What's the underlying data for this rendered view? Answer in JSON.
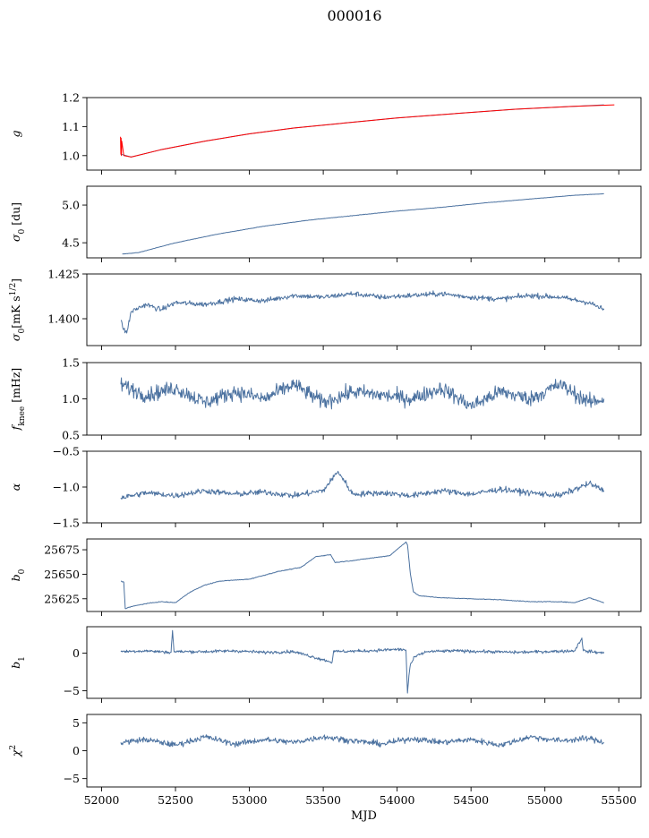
{
  "figure_title": "000016",
  "colors": {
    "series": "#4c72a0",
    "fit": "#ff0000"
  },
  "chart_data": [
    {
      "id": "g",
      "type": "line",
      "ylabel": "g",
      "xlim": [
        51900,
        55650
      ],
      "ylim": [
        0.95,
        1.2
      ],
      "yticks": [
        1.0,
        1.1,
        1.2
      ],
      "ytick_labels": [
        "1.0",
        "1.1",
        "1.2"
      ],
      "xticks": [
        52000,
        52500,
        53000,
        53500,
        54000,
        54500,
        55000,
        55500
      ],
      "series": [
        {
          "color": "#4c72a0",
          "x": [
            52130,
            52200,
            52400,
            52700,
            53000,
            53300,
            53700,
            54000,
            54400,
            54800,
            55200,
            55400
          ],
          "y": [
            1.005,
            0.995,
            1.02,
            1.05,
            1.075,
            1.095,
            1.115,
            1.13,
            1.145,
            1.16,
            1.17,
            1.175
          ]
        },
        {
          "color": "#ff0000",
          "x": [
            52128,
            52130,
            52132,
            52134,
            52136,
            52150,
            52200,
            52400,
            52700,
            53000,
            53300,
            53700,
            54000,
            54400,
            54800,
            55200,
            55470
          ],
          "y": [
            1.065,
            1.005,
            1.06,
            1.0,
            1.05,
            1.0,
            0.995,
            1.02,
            1.05,
            1.075,
            1.095,
            1.115,
            1.13,
            1.145,
            1.16,
            1.17,
            1.175
          ]
        }
      ]
    },
    {
      "id": "sigma0",
      "type": "line",
      "ylabel": "σ0 [du]",
      "xlim": [
        51900,
        55650
      ],
      "ylim": [
        4.3,
        5.25
      ],
      "yticks": [
        4.5,
        5.0
      ],
      "ytick_labels": [
        "4.5",
        "5.0"
      ],
      "xticks": [
        52000,
        52500,
        53000,
        53500,
        54000,
        54500,
        55000,
        55500
      ],
      "series": [
        {
          "color": "#4c72a0",
          "x": [
            52140,
            52250,
            52500,
            52800,
            53100,
            53400,
            53700,
            54000,
            54300,
            54600,
            54900,
            55200,
            55400
          ],
          "y": [
            4.35,
            4.37,
            4.5,
            4.62,
            4.72,
            4.8,
            4.86,
            4.92,
            4.97,
            5.03,
            5.08,
            5.13,
            5.15
          ]
        }
      ]
    },
    {
      "id": "sigma0_white",
      "type": "line",
      "ylabel": "σ0[mK s1/2]",
      "xlim": [
        51900,
        55650
      ],
      "ylim": [
        1.385,
        1.425
      ],
      "yticks": [
        1.4,
        1.425
      ],
      "ytick_labels": [
        "1.400",
        "1.425"
      ],
      "xticks": [
        52000,
        52500,
        53000,
        53500,
        54000,
        54500,
        55000,
        55500
      ],
      "series": [
        {
          "color": "#4c72a0",
          "x": [
            52130,
            52150,
            52170,
            52200,
            52300,
            52400,
            52500,
            52700,
            52900,
            53100,
            53300,
            53500,
            53700,
            53900,
            54100,
            54300,
            54500,
            54700,
            54900,
            55100,
            55300,
            55400
          ],
          "y": [
            1.399,
            1.394,
            1.392,
            1.404,
            1.408,
            1.405,
            1.409,
            1.408,
            1.411,
            1.41,
            1.413,
            1.412,
            1.414,
            1.412,
            1.413,
            1.414,
            1.412,
            1.411,
            1.413,
            1.412,
            1.409,
            1.405
          ]
        }
      ]
    },
    {
      "id": "fknee",
      "type": "line",
      "ylabel": "fknee [mHz]",
      "xlim": [
        51900,
        55650
      ],
      "ylim": [
        0.5,
        1.5
      ],
      "yticks": [
        0.5,
        1.0,
        1.5
      ],
      "ytick_labels": [
        "0.5",
        "1.0",
        "1.5"
      ],
      "xticks": [
        52000,
        52500,
        53000,
        53500,
        54000,
        54500,
        55000,
        55500
      ],
      "series": [
        {
          "color": "#4c72a0",
          "x": [
            52130,
            52300,
            52500,
            52700,
            52900,
            53100,
            53300,
            53500,
            53700,
            53900,
            54100,
            54300,
            54500,
            54700,
            54900,
            55100,
            55300,
            55400
          ],
          "y": [
            1.2,
            1.05,
            1.15,
            0.95,
            1.1,
            1.0,
            1.2,
            0.95,
            1.1,
            1.05,
            1.0,
            1.15,
            0.9,
            1.1,
            1.0,
            1.2,
            0.95,
            1.0
          ]
        }
      ]
    },
    {
      "id": "alpha",
      "type": "line",
      "ylabel": "α",
      "xlim": [
        51900,
        55650
      ],
      "ylim": [
        -1.5,
        -0.5
      ],
      "yticks": [
        -1.5,
        -1.0,
        -0.5
      ],
      "ytick_labels": [
        "−1.5",
        "−1.0",
        "−0.5"
      ],
      "xticks": [
        52000,
        52500,
        53000,
        53500,
        54000,
        54500,
        55000,
        55500
      ],
      "series": [
        {
          "color": "#4c72a0",
          "x": [
            52130,
            52300,
            52500,
            52700,
            52900,
            53100,
            53300,
            53500,
            53600,
            53700,
            53900,
            54100,
            54300,
            54500,
            54700,
            54900,
            55100,
            55300,
            55400
          ],
          "y": [
            -1.15,
            -1.08,
            -1.12,
            -1.05,
            -1.1,
            -1.07,
            -1.12,
            -1.05,
            -0.78,
            -1.1,
            -1.08,
            -1.12,
            -1.05,
            -1.1,
            -1.03,
            -1.08,
            -1.12,
            -0.95,
            -1.05
          ]
        }
      ]
    },
    {
      "id": "b0",
      "type": "line",
      "ylabel": "b0",
      "xlim": [
        51900,
        55650
      ],
      "ylim": [
        25612,
        25686
      ],
      "yticks": [
        25625,
        25650,
        25675
      ],
      "ytick_labels": [
        "25625",
        "25650",
        "25675"
      ],
      "xticks": [
        52000,
        52500,
        53000,
        53500,
        54000,
        54500,
        55000,
        55500
      ],
      "series": [
        {
          "color": "#4c72a0",
          "x": [
            52130,
            52150,
            52160,
            52200,
            52300,
            52400,
            52500,
            52600,
            52700,
            52800,
            53000,
            53200,
            53350,
            53450,
            53550,
            53580,
            53700,
            53800,
            53950,
            54060,
            54070,
            54090,
            54110,
            54150,
            54300,
            54500,
            54700,
            54900,
            55100,
            55200,
            55300,
            55400
          ],
          "y": [
            25643,
            25642,
            25615,
            25617,
            25620,
            25622,
            25621,
            25632,
            25639,
            25643,
            25645,
            25653,
            25657,
            25668,
            25670,
            25662,
            25664,
            25666,
            25669,
            25683,
            25680,
            25650,
            25632,
            25628,
            25626,
            25625,
            25624,
            25622,
            25622,
            25621,
            25626,
            25621
          ]
        }
      ]
    },
    {
      "id": "b1",
      "type": "line",
      "ylabel": "b1",
      "xlim": [
        51900,
        55650
      ],
      "ylim": [
        -6,
        3.5
      ],
      "yticks": [
        -5,
        0
      ],
      "ytick_labels": [
        "−5",
        "0"
      ],
      "xticks": [
        52000,
        52500,
        53000,
        53500,
        54000,
        54500,
        55000,
        55500
      ],
      "series": [
        {
          "color": "#4c72a0",
          "x": [
            52130,
            52300,
            52470,
            52480,
            52490,
            52700,
            52900,
            53100,
            53300,
            53560,
            53570,
            53580,
            53800,
            54000,
            54060,
            54070,
            54080,
            54090,
            54120,
            54200,
            54400,
            54600,
            54800,
            55000,
            55200,
            55250,
            55260,
            55400
          ],
          "y": [
            0.2,
            0.3,
            0.1,
            3.0,
            0.2,
            0.2,
            0.3,
            0.1,
            0.2,
            -1.2,
            0.3,
            0.2,
            0.3,
            0.5,
            0.4,
            -5.3,
            -3.0,
            -1.5,
            -0.5,
            0.2,
            0.3,
            0.2,
            0.1,
            0.2,
            0.3,
            2.0,
            0.3,
            0.0
          ]
        }
      ]
    },
    {
      "id": "chi2",
      "type": "line",
      "ylabel": "χ2",
      "xlim": [
        51900,
        55650
      ],
      "ylim": [
        -6.5,
        6.5
      ],
      "yticks": [
        -5,
        0,
        5
      ],
      "ytick_labels": [
        "−5",
        "0",
        "5"
      ],
      "xticks": [
        52000,
        52500,
        53000,
        53500,
        54000,
        54500,
        55000,
        55500
      ],
      "xtick_labels": [
        "52000",
        "52500",
        "53000",
        "53500",
        "54000",
        "54500",
        "55000",
        "55500"
      ],
      "xlabel": "MJD",
      "series": [
        {
          "color": "#4c72a0",
          "x": [
            52130,
            52300,
            52500,
            52700,
            52900,
            53100,
            53300,
            53500,
            53700,
            53900,
            54100,
            54300,
            54500,
            54700,
            54900,
            55100,
            55300,
            55400
          ],
          "y": [
            1.5,
            2.0,
            1.0,
            2.5,
            1.2,
            2.0,
            1.5,
            2.5,
            1.8,
            1.2,
            2.2,
            1.5,
            2.0,
            1.0,
            2.5,
            1.8,
            2.2,
            1.5
          ]
        }
      ]
    }
  ]
}
